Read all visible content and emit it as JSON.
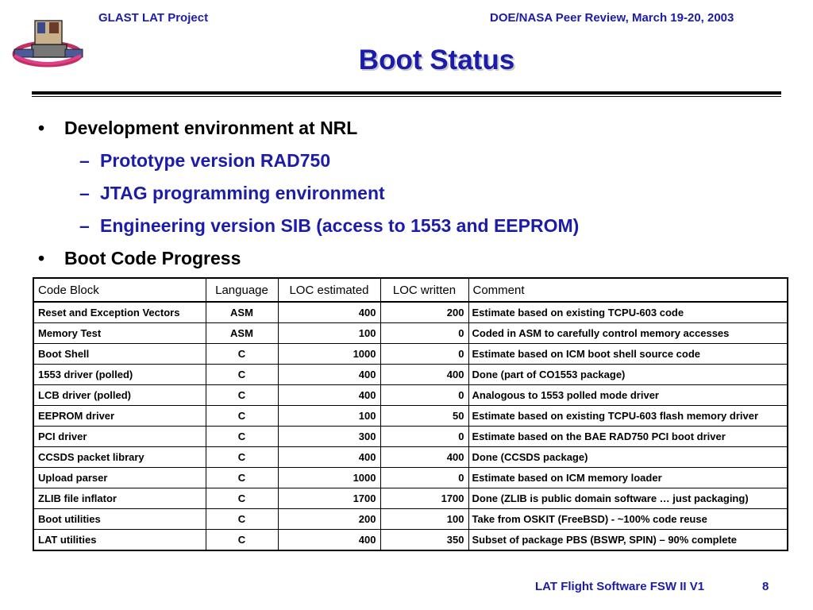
{
  "header": {
    "left": "GLAST LAT Project",
    "right": "DOE/NASA Peer Review, March 19-20, 2003"
  },
  "title": "Boot Status",
  "bullets": [
    {
      "text": "Development environment at NRL",
      "sub": [
        "Prototype version RAD750",
        "JTAG programming environment",
        "Engineering version SIB (access to 1553 and EEPROM)"
      ]
    },
    {
      "text": "Boot Code Progress",
      "sub": []
    }
  ],
  "table": {
    "headers": [
      "Code Block",
      "Language",
      "LOC estimated",
      "LOC written",
      "Comment"
    ],
    "rows": [
      [
        "Reset and Exception Vectors",
        "ASM",
        "400",
        "200",
        "Estimate based on existing TCPU-603 code"
      ],
      [
        "Memory Test",
        "ASM",
        "100",
        "0",
        "Coded in ASM to carefully control memory accesses"
      ],
      [
        "Boot Shell",
        "C",
        "1000",
        "0",
        "Estimate based on ICM boot shell source code"
      ],
      [
        "1553 driver (polled)",
        "C",
        "400",
        "400",
        "Done (part of CO1553 package)"
      ],
      [
        "LCB driver (polled)",
        "C",
        "400",
        "0",
        "Analogous to 1553 polled mode driver"
      ],
      [
        "EEPROM driver",
        "C",
        "100",
        "50",
        "Estimate based on existing TCPU-603 flash memory driver"
      ],
      [
        "PCI driver",
        "C",
        "300",
        "0",
        "Estimate based on the BAE RAD750 PCI boot driver"
      ],
      [
        "CCSDS packet library",
        "C",
        "400",
        "400",
        "Done (CCSDS package)"
      ],
      [
        "Upload parser",
        "C",
        "1000",
        "0",
        "Estimate based on ICM memory loader"
      ],
      [
        "ZLIB file inflator",
        "C",
        "1700",
        "1700",
        "Done (ZLIB is public domain software … just packaging)"
      ],
      [
        "Boot utilities",
        "C",
        "200",
        "100",
        "Take from OSKIT (FreeBSD) - ~100% code reuse"
      ],
      [
        "LAT utilities",
        "C",
        "400",
        "350",
        "Subset of package PBS (BSWP, SPIN) – 90% complete"
      ]
    ]
  },
  "footer": {
    "left": "LAT Flight Software FSW II V1",
    "page": "8"
  },
  "colors": {
    "accent": "#1c1caa",
    "text": "#000000",
    "rule": "#000000"
  },
  "icons": {
    "bullet": "•",
    "sub_bullet": "–"
  }
}
